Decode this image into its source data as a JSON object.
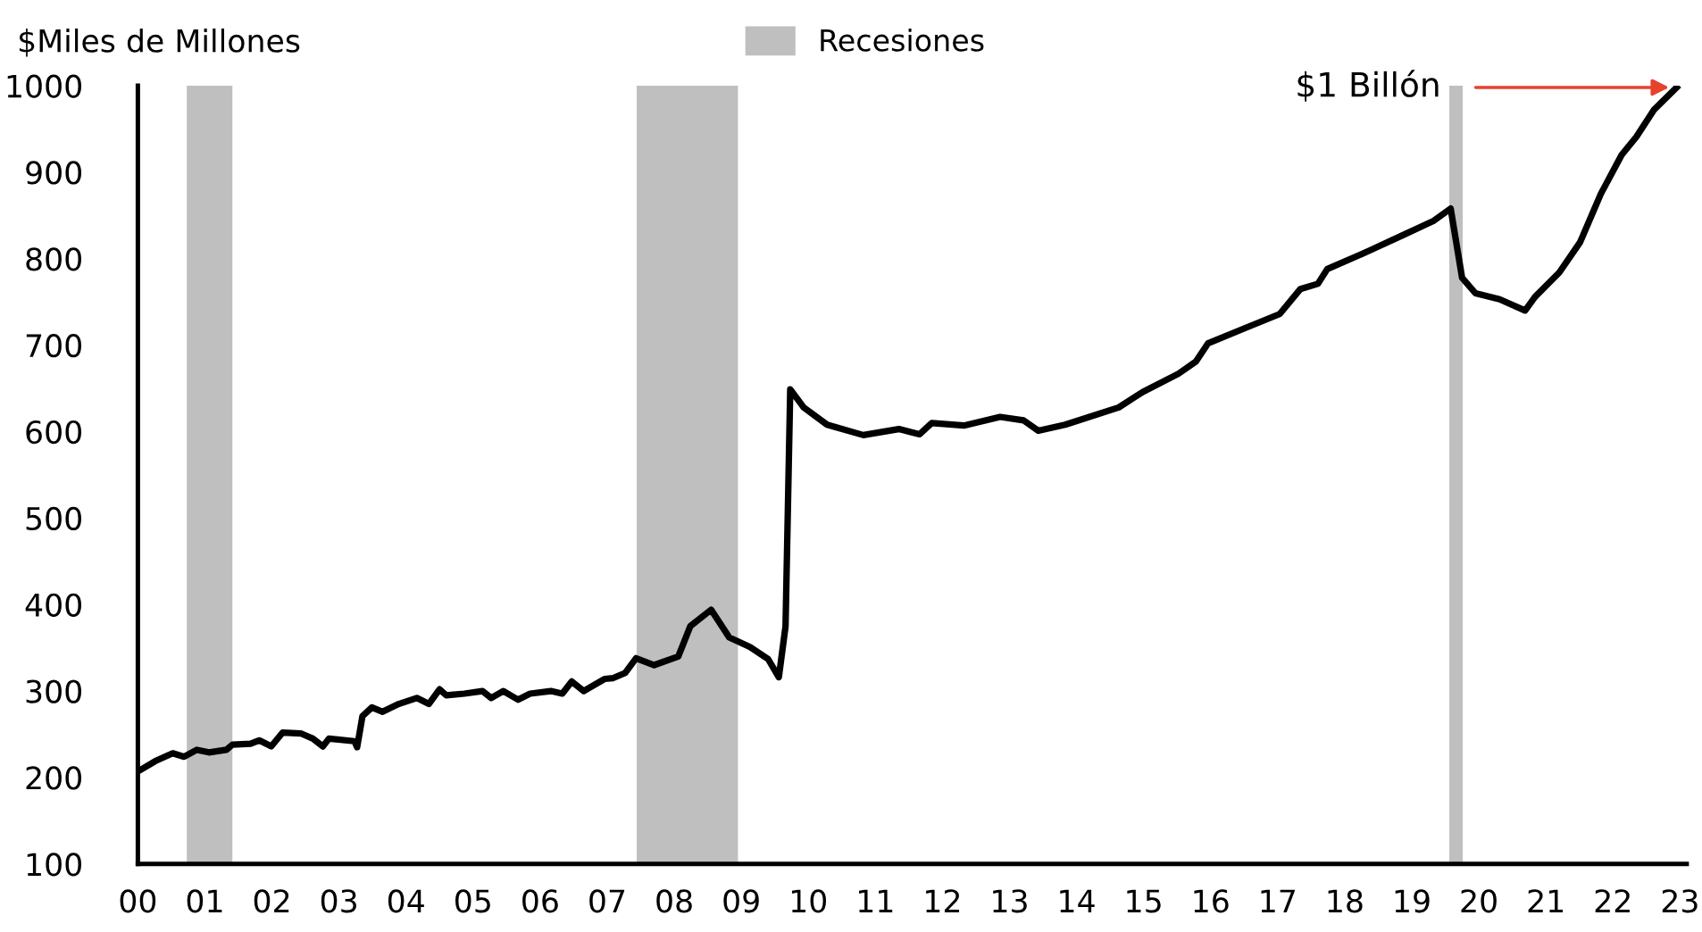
{
  "chart_data": {
    "type": "line",
    "ylabel": "$Miles de Millones",
    "x": [
      2000,
      2000.26,
      2000.52,
      2000.69,
      2000.88,
      2001.06,
      2001.32,
      2001.41,
      2001.68,
      2001.81,
      2001.99,
      2002.16,
      2002.43,
      2002.61,
      2002.76,
      2002.85,
      2003.23,
      2003.27,
      2003.35,
      2003.49,
      2003.65,
      2003.89,
      2004.16,
      2004.34,
      2004.5,
      2004.6,
      2004.87,
      2005.14,
      2005.27,
      2005.45,
      2005.67,
      2005.85,
      2006.16,
      2006.33,
      2006.47,
      2006.65,
      2006.96,
      2007.09,
      2007.27,
      2007.43,
      2007.7,
      2008.06,
      2008.24,
      2008.55,
      2008.82,
      2009.13,
      2009.4,
      2009.56,
      2009.66,
      2009.73,
      2009.93,
      2010.28,
      2010.82,
      2011.35,
      2011.66,
      2011.84,
      2012.32,
      2012.86,
      2013.21,
      2013.43,
      2013.83,
      2014.63,
      2014.99,
      2015.52,
      2015.78,
      2015.96,
      2016.49,
      2017.03,
      2017.34,
      2017.6,
      2017.74,
      2018.36,
      2018.89,
      2019.33,
      2019.58,
      2019.75,
      2019.95,
      2020.31,
      2020.69,
      2020.84,
      2021.2,
      2021.51,
      2021.82,
      2022.13,
      2022.35,
      2022.61,
      2022.95
    ],
    "series": [
      {
        "color": "#000000",
        "values": [
          207,
          219,
          228,
          224,
          232,
          229,
          232,
          238,
          239,
          243,
          236,
          252,
          251,
          245,
          236,
          245,
          242,
          235,
          271,
          281,
          276,
          285,
          292,
          285,
          302,
          295,
          297,
          300,
          292,
          300,
          290,
          297,
          300,
          297,
          311,
          300,
          314,
          315,
          321,
          338,
          330,
          340,
          375,
          394,
          362,
          351,
          337,
          316,
          375,
          649,
          628,
          608,
          596,
          603,
          597,
          610,
          607,
          617,
          613,
          601,
          608,
          628,
          646,
          667,
          681,
          702,
          719,
          736,
          765,
          771,
          788,
          809,
          828,
          844,
          858,
          778,
          760,
          753,
          740,
          756,
          784,
          819,
          875,
          920,
          941,
          972,
          998
        ]
      }
    ],
    "xlim": [
      2000,
      2023.1
    ],
    "xticks": [
      {
        "value": 2000,
        "label": "00"
      },
      {
        "value": 2001,
        "label": "01"
      },
      {
        "value": 2002,
        "label": "02"
      },
      {
        "value": 2003,
        "label": "03"
      },
      {
        "value": 2004,
        "label": "04"
      },
      {
        "value": 2005,
        "label": "05"
      },
      {
        "value": 2006,
        "label": "06"
      },
      {
        "value": 2007,
        "label": "07"
      },
      {
        "value": 2008,
        "label": "08"
      },
      {
        "value": 2009,
        "label": "09"
      },
      {
        "value": 2010,
        "label": "10"
      },
      {
        "value": 2011,
        "label": "11"
      },
      {
        "value": 2012,
        "label": "12"
      },
      {
        "value": 2013,
        "label": "13"
      },
      {
        "value": 2014,
        "label": "14"
      },
      {
        "value": 2015,
        "label": "15"
      },
      {
        "value": 2016,
        "label": "16"
      },
      {
        "value": 2017,
        "label": "17"
      },
      {
        "value": 2018,
        "label": "18"
      },
      {
        "value": 2019,
        "label": "19"
      },
      {
        "value": 2020,
        "label": "20"
      },
      {
        "value": 2021,
        "label": "21"
      },
      {
        "value": 2022,
        "label": "22"
      },
      {
        "value": 2023,
        "label": "23"
      }
    ],
    "ylim": [
      100,
      1000
    ],
    "yticks": [
      100,
      200,
      300,
      400,
      500,
      600,
      700,
      800,
      900,
      1000
    ],
    "bands": [
      {
        "axis": "x",
        "from": 2000.73,
        "to": 2001.41,
        "label": "Recesiones",
        "color": "#bfbfbf"
      },
      {
        "axis": "x",
        "from": 2007.44,
        "to": 2008.95,
        "color": "#bfbfbf"
      },
      {
        "axis": "x",
        "from": 2019.56,
        "to": 2019.76,
        "color": "#bfbfbf"
      }
    ],
    "annotations": [
      {
        "text": "$1 Billón",
        "x": 2022.95,
        "y": 998
      }
    ],
    "grid": false,
    "legend": "top",
    "line_style": "solid",
    "marker": "none"
  }
}
